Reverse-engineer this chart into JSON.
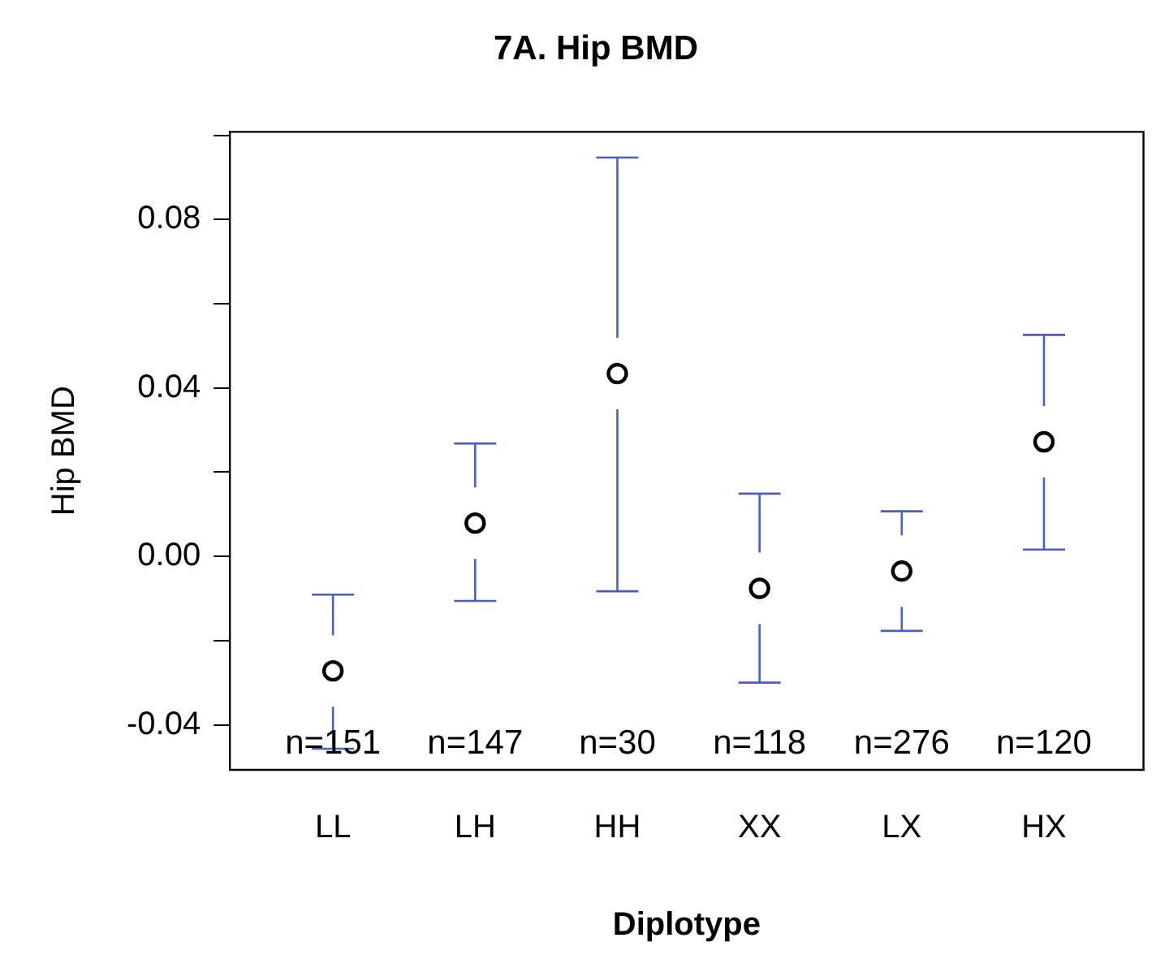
{
  "chart_data": {
    "type": "scatter",
    "title": "7A. Hip BMD",
    "xlabel": "Diplotype",
    "ylabel": "Hip BMD",
    "categories": [
      "LL",
      "LH",
      "HH",
      "XX",
      "LX",
      "HX"
    ],
    "series": [
      {
        "color": "#000000",
        "values": [
          -0.0272,
          0.0079,
          0.0434,
          -0.0076,
          -0.0035,
          0.0272
        ],
        "errors": [
          [
            -0.0457,
            -0.0091
          ],
          [
            -0.0106,
            0.0268
          ],
          [
            -0.0083,
            0.0947
          ],
          [
            -0.03,
            0.0149
          ],
          [
            -0.0177,
            0.0107
          ],
          [
            0.0016,
            0.0526
          ]
        ]
      }
    ],
    "ylim": [
      -0.0507,
      0.1008
    ],
    "yticks": [
      -0.04,
      {
        "value": -0.02,
        "label": null
      },
      {
        "value": 0,
        "label": "0.00"
      },
      {
        "value": 0.02,
        "label": null
      },
      0.04,
      {
        "value": 0.06,
        "label": null
      },
      0.08,
      {
        "value": 0.1,
        "label": null
      }
    ],
    "annotations": [
      "n=151",
      "n=147",
      "n=30",
      "n=118",
      "n=276",
      "n=120"
    ],
    "marker": "circle",
    "grid": false,
    "legend": false
  }
}
